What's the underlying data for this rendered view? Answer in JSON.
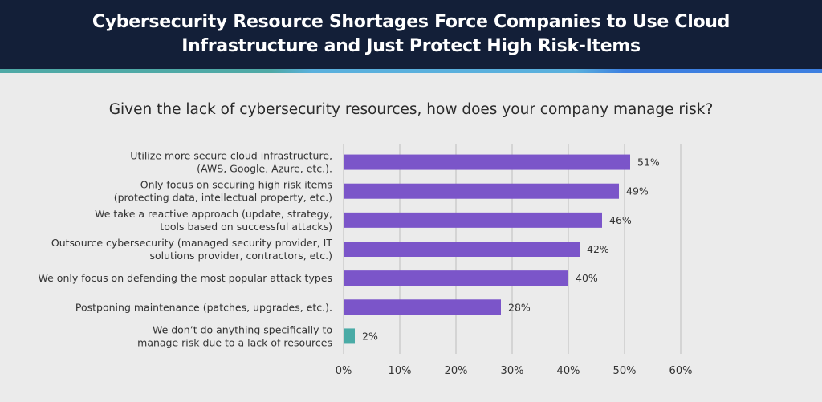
{
  "header": {
    "title_line1": "Cybersecurity Resource Shortages Force Companies to Use Cloud",
    "title_line2": "Infrastructure and Just Protect High Risk-Items"
  },
  "chart_data": {
    "type": "bar",
    "orientation": "horizontal",
    "title": "Given the lack of cybersecurity resources, how does your company manage risk?",
    "categories": [
      [
        "Utilize more secure cloud infrastructure,",
        "(AWS, Google, Azure, etc.)."
      ],
      [
        "Only focus on securing high risk items",
        "(protecting data, intellectual property, etc.)"
      ],
      [
        "We take a reactive approach (update, strategy,",
        "tools based on successful attacks)"
      ],
      [
        "Outsource cybersecurity (managed security provider, IT",
        "solutions provider, contractors, etc.)"
      ],
      [
        "We only focus on defending the most popular attack types"
      ],
      [
        "Postponing maintenance (patches, upgrades, etc.)."
      ],
      [
        "We don’t do anything specifically to",
        "manage risk due to a lack of resources"
      ]
    ],
    "values": [
      51,
      49,
      46,
      42,
      40,
      28,
      2
    ],
    "data_labels": [
      "51%",
      "49%",
      "46%",
      "42%",
      "40%",
      "28%",
      "2%"
    ],
    "colors": [
      "#7b55c9",
      "#7b55c9",
      "#7b55c9",
      "#7b55c9",
      "#7b55c9",
      "#7b55c9",
      "#4aaba6"
    ],
    "xlim": [
      0,
      60
    ],
    "xticks": [
      "0%",
      "10%",
      "20%",
      "30%",
      "40%",
      "50%",
      "60%"
    ],
    "grid": true,
    "legend": "none"
  }
}
